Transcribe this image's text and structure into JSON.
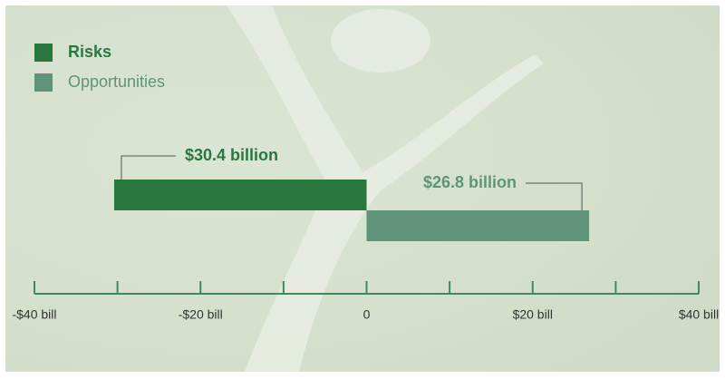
{
  "chart_data": {
    "type": "diverging-bar",
    "series": [
      {
        "name": "Risks",
        "color": "#27773f",
        "values": [
          -30.4
        ],
        "value_labels": [
          "$30.4 billion"
        ]
      },
      {
        "name": "Opportunities",
        "color": "#5f947b",
        "values": [
          26.8
        ],
        "value_labels": [
          "$26.8 billion"
        ]
      }
    ],
    "xlim": [
      -40,
      40
    ],
    "xticks": [
      {
        "value": -40,
        "label": "-$40 bill"
      },
      {
        "value": -20,
        "label": "-$20 bill"
      },
      0,
      {
        "value": 20,
        "label": "$20 bill"
      },
      {
        "value": 40,
        "label": "$40 bill"
      }
    ],
    "minor_xticks": [
      -30,
      -10,
      10,
      30
    ],
    "legend": "top-left"
  }
}
